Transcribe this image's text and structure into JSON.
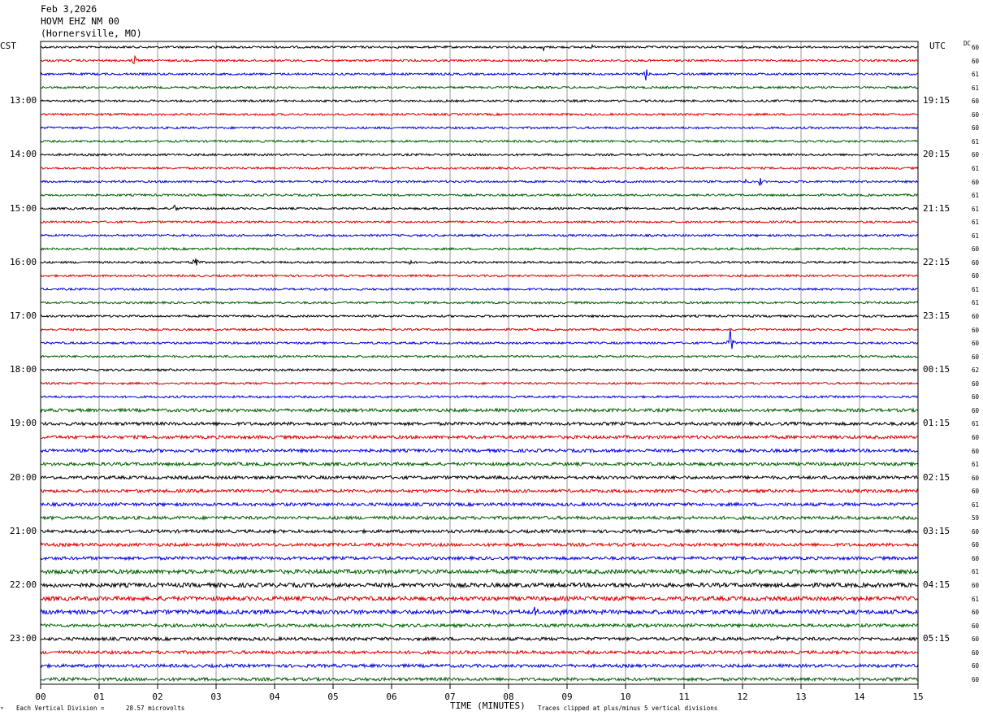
{
  "header": {
    "date": "Feb 3,2026",
    "station": "HOVM EHZ NM 00",
    "location": "(Hornersville, MO)"
  },
  "left_tz": "CST",
  "right_tz": "UTC",
  "dc_label": "DC",
  "footer": {
    "scale_prefix": "Each Vertical Division =",
    "scale_value": "28.57 microvolts",
    "xlabel": "TIME (MINUTES)",
    "clip_note": "Traces clipped at plus/minus 5 vertical divisions"
  },
  "colors": {
    "trace_cycle": [
      "#000000",
      "#e00000",
      "#0000e0",
      "#006000"
    ],
    "grid": "#808080"
  },
  "chart_data": {
    "type": "line",
    "title": "HOVM EHZ NM 00",
    "xlabel": "TIME (MINUTES)",
    "xlim": [
      0,
      15
    ],
    "x_ticks": [
      "00",
      "01",
      "02",
      "03",
      "04",
      "05",
      "06",
      "07",
      "08",
      "09",
      "10",
      "11",
      "12",
      "13",
      "14",
      "15"
    ],
    "rows": 48,
    "row_minutes": 15,
    "left_hour_labels": [
      "13:00",
      "14:00",
      "15:00",
      "16:00",
      "17:00",
      "18:00",
      "19:00",
      "20:00",
      "21:00",
      "22:00",
      "23:00"
    ],
    "right_hour_labels": [
      "19:15",
      "20:15",
      "21:15",
      "22:15",
      "23:15",
      "00:15",
      "01:15",
      "02:15",
      "03:15",
      "04:15",
      "05:15"
    ],
    "dc_offsets": [
      60,
      60,
      61,
      61,
      60,
      60,
      60,
      61,
      60,
      61,
      60,
      61,
      61,
      61,
      61,
      60,
      60,
      60,
      61,
      61,
      60,
      60,
      60,
      60,
      62,
      60,
      60,
      60,
      61,
      60,
      60,
      61,
      60,
      60,
      61,
      59,
      60,
      60,
      60,
      61,
      60,
      61,
      60,
      60,
      60,
      60,
      60,
      60
    ],
    "noise_levels": [
      2,
      2,
      2,
      2,
      2,
      2,
      2,
      2,
      2,
      2,
      2,
      2,
      2,
      2,
      2,
      2,
      2,
      2,
      2,
      2,
      2,
      2,
      2,
      2,
      2,
      2,
      2,
      3,
      3,
      3,
      3,
      3,
      3,
      3,
      3,
      3,
      3,
      3,
      3,
      4,
      4,
      4,
      4,
      3,
      3,
      3,
      3,
      3
    ],
    "events": [
      {
        "row": 0,
        "minute": 8.6,
        "amp": 4
      },
      {
        "row": 0,
        "minute": 9.45,
        "amp": 3
      },
      {
        "row": 1,
        "minute": 1.6,
        "amp": 8
      },
      {
        "row": 2,
        "minute": 10.35,
        "amp": 16
      },
      {
        "row": 10,
        "minute": 12.05,
        "amp": 4
      },
      {
        "row": 10,
        "minute": 12.3,
        "amp": 7
      },
      {
        "row": 12,
        "minute": 2.3,
        "amp": 6
      },
      {
        "row": 16,
        "minute": 2.65,
        "amp": 14
      },
      {
        "row": 16,
        "minute": 6.3,
        "amp": 5
      },
      {
        "row": 22,
        "minute": 11.8,
        "amp": 26
      },
      {
        "row": 42,
        "minute": 8.45,
        "amp": 12
      },
      {
        "row": 42,
        "minute": 8.9,
        "amp": 8
      },
      {
        "row": 44,
        "minute": 12.6,
        "amp": 6
      }
    ]
  }
}
